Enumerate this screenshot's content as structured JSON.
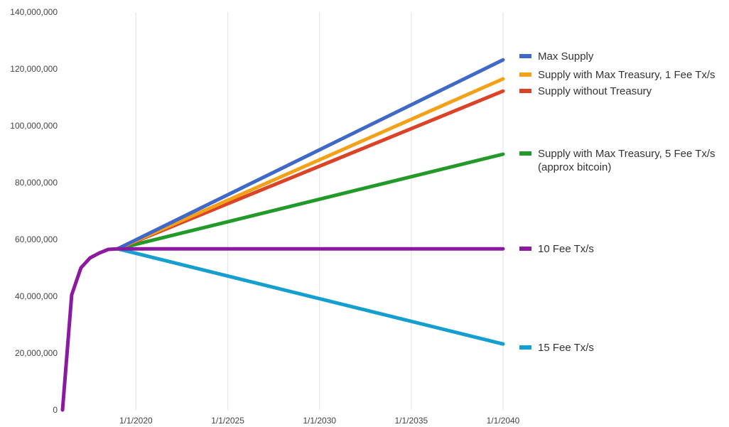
{
  "chart_data": {
    "type": "line",
    "title": "",
    "xlabel": "",
    "ylabel": "",
    "x_axis": {
      "type": "date",
      "start": "2016-01-01",
      "end": "2040-01-01",
      "ticks": [
        "1/1/2020",
        "1/1/2025",
        "1/1/2030",
        "1/1/2035",
        "1/1/2040"
      ]
    },
    "ylim": [
      0,
      140000000
    ],
    "y_ticks": [
      "0",
      "20,000,000",
      "40,000,000",
      "60,000,000",
      "80,000,000",
      "100,000,000",
      "120,000,000",
      "140,000,000"
    ],
    "grid": "vertical",
    "legend_position": "right",
    "common_history": {
      "x": [
        "2016-01-01",
        "2016-07-01",
        "2017-01-01",
        "2017-07-01",
        "2018-01-01",
        "2018-07-01",
        "2019-01-01"
      ],
      "y": [
        0,
        40500000,
        50000000,
        53500000,
        55200000,
        56500000,
        56700000
      ]
    },
    "series": [
      {
        "name": "Max Supply",
        "color": "#3f68c8",
        "x": [
          "2019-01-01",
          "2040-01-01"
        ],
        "y": [
          56700000,
          123200000
        ]
      },
      {
        "name": "Supply with Max Treasury, 1 Fee Tx/s",
        "color": "#f4a11a",
        "x": [
          "2019-01-01",
          "2040-01-01"
        ],
        "y": [
          56700000,
          116500000
        ]
      },
      {
        "name": "Supply without Treasury",
        "color": "#dc4326",
        "x": [
          "2019-01-01",
          "2040-01-01"
        ],
        "y": [
          56700000,
          112200000
        ]
      },
      {
        "name": "Supply with Max Treasury, 5 Fee Tx/s (approx bitcoin)",
        "color": "#229a2a",
        "x": [
          "2019-01-01",
          "2040-01-01"
        ],
        "y": [
          56700000,
          90000000
        ]
      },
      {
        "name": "10 Fee Tx/s",
        "color": "#8c1aa0",
        "x": [
          "2019-01-01",
          "2040-01-01"
        ],
        "y": [
          56700000,
          56700000
        ]
      },
      {
        "name": "15 Fee Tx/s",
        "color": "#149fd0",
        "x": [
          "2019-01-01",
          "2040-01-01"
        ],
        "y": [
          56700000,
          23200000
        ]
      }
    ],
    "legend_lines": [
      [
        "Max Supply"
      ],
      [
        "Supply with Max Treasury, 1 Fee Tx/s"
      ],
      [
        "Supply without Treasury"
      ],
      [
        "Supply with Max Treasury, 5 Fee Tx/s",
        "(approx bitcoin)"
      ],
      [
        "10 Fee Tx/s"
      ],
      [
        "15 Fee Tx/s"
      ]
    ]
  }
}
